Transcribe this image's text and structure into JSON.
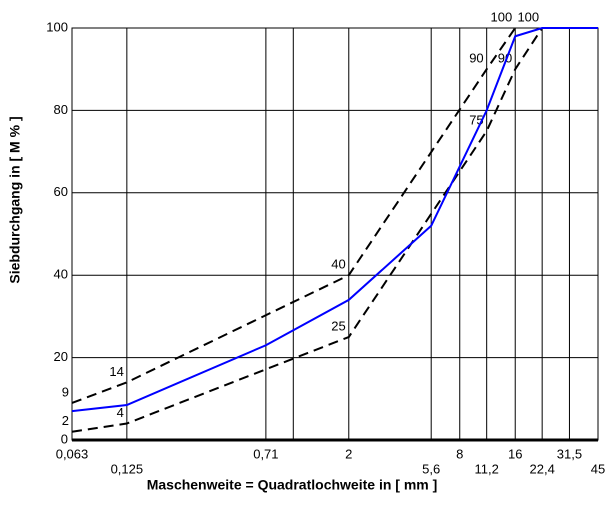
{
  "chart_data": {
    "type": "line",
    "x_label": "Maschenweite = Quadratlochweite in [ mm ]",
    "y_label": "Siebdurchgang in [ M % ]",
    "xscale": "log",
    "xlim": [
      0.063,
      45
    ],
    "xticks": [
      {
        "value": 0.063,
        "label": "0,063"
      },
      {
        "value": 0.125,
        "label": "0,125"
      },
      {
        "value": 0.71,
        "label": "0,71"
      },
      {
        "value": 1,
        "label": null
      },
      2,
      {
        "value": 5.6,
        "label": "5,6"
      },
      8,
      {
        "value": 11.2,
        "label": "11,2"
      },
      16,
      {
        "value": 22.4,
        "label": "22,4"
      },
      {
        "value": 31.5,
        "label": "31,5"
      },
      45
    ],
    "ylim": [
      0,
      100
    ],
    "yticks": [
      0,
      20,
      40,
      60,
      80,
      100
    ],
    "grid": true,
    "series": [
      {
        "color": "#000000",
        "dash": true,
        "show_labels": true,
        "x": [
          0.063,
          0.125,
          2,
          11.2,
          16
        ],
        "values": [
          9,
          14,
          40,
          90,
          100
        ]
      },
      {
        "color": "#000000",
        "dash": true,
        "show_labels": true,
        "x": [
          0.063,
          0.125,
          2,
          11.2,
          16,
          22.4
        ],
        "values": [
          2,
          4,
          25,
          75,
          90,
          100
        ]
      },
      {
        "color": "#0000ff",
        "dash": false,
        "show_labels": false,
        "x": [
          0.063,
          0.125,
          0.71,
          2,
          5.6,
          11.2,
          16,
          22.4,
          45
        ],
        "values": [
          7,
          8.5,
          23,
          34,
          52,
          80,
          98,
          100,
          100
        ]
      }
    ]
  }
}
